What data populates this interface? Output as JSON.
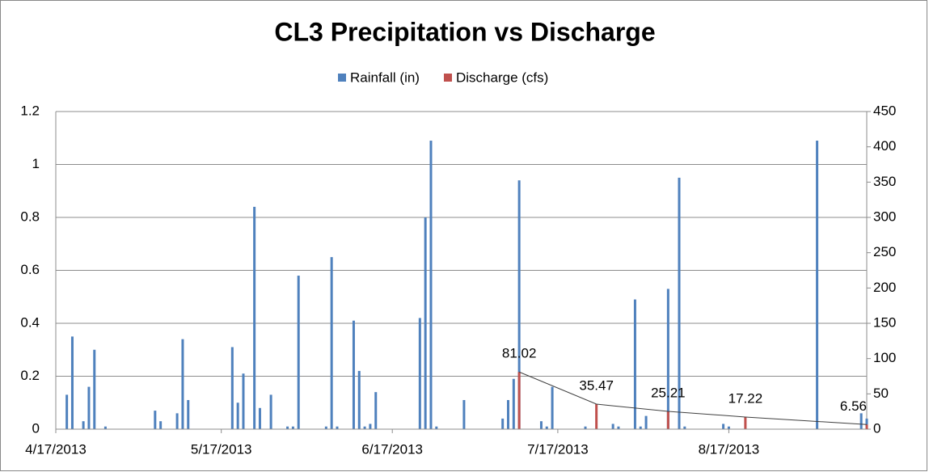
{
  "chart_data": {
    "type": "bar",
    "title": "CL3 Precipitation vs Discharge",
    "legend": "top",
    "grid": true,
    "xlim": [
      "4/17/2013",
      "9/11/2013"
    ],
    "xticks": [
      "4/17/2013",
      "5/17/2013",
      "6/17/2013",
      "7/17/2013",
      "8/17/2013"
    ],
    "ylim": [
      0,
      1.2
    ],
    "yticks": [
      0,
      0.2,
      0.4,
      0.6,
      0.8,
      1,
      1.2
    ],
    "y2lim": [
      0,
      450
    ],
    "y2ticks": [
      0,
      50,
      100,
      150,
      200,
      250,
      300,
      350,
      400,
      450
    ],
    "series": [
      {
        "name": "Rainfall (in)",
        "color": "#4f81bd",
        "x": [
          "4/19/2013",
          "4/20/2013",
          "4/22/2013",
          "4/23/2013",
          "4/24/2013",
          "4/26/2013",
          "5/5/2013",
          "5/6/2013",
          "5/9/2013",
          "5/10/2013",
          "5/11/2013",
          "5/19/2013",
          "5/20/2013",
          "5/21/2013",
          "5/23/2013",
          "5/24/2013",
          "5/26/2013",
          "5/29/2013",
          "5/30/2013",
          "5/31/2013",
          "6/5/2013",
          "6/6/2013",
          "6/7/2013",
          "6/10/2013",
          "6/11/2013",
          "6/12/2013",
          "6/13/2013",
          "6/14/2013",
          "6/22/2013",
          "6/23/2013",
          "6/24/2013",
          "6/25/2013",
          "6/30/2013",
          "7/7/2013",
          "7/8/2013",
          "7/9/2013",
          "7/10/2013",
          "7/14/2013",
          "7/15/2013",
          "7/16/2013",
          "7/22/2013",
          "7/27/2013",
          "7/28/2013",
          "7/31/2013",
          "8/1/2013",
          "8/2/2013",
          "8/6/2013",
          "8/8/2013",
          "8/9/2013",
          "8/16/2013",
          "8/17/2013",
          "9/2/2013",
          "9/10/2013",
          "9/11/2013"
        ],
        "values": [
          0.13,
          0.35,
          0.03,
          0.16,
          0.3,
          0.01,
          0.07,
          0.03,
          0.06,
          0.34,
          0.11,
          0.31,
          0.1,
          0.21,
          0.84,
          0.08,
          0.13,
          0.01,
          0.01,
          0.58,
          0.01,
          0.65,
          0.01,
          0.41,
          0.22,
          0.01,
          0.02,
          0.14,
          0.42,
          0.8,
          1.09,
          0.01,
          0.11,
          0.04,
          0.11,
          0.19,
          0.94,
          0.03,
          0.01,
          0.16,
          0.01,
          0.02,
          0.01,
          0.49,
          0.01,
          0.05,
          0.53,
          0.95,
          0.01,
          0.02,
          0.01,
          1.09,
          0.06,
          0.04
        ]
      },
      {
        "name": "Discharge (cfs)",
        "color": "#c0504d",
        "axis": "y2",
        "line_color": "#404040",
        "x": [
          "7/10/2013",
          "7/24/2013",
          "8/6/2013",
          "8/20/2013",
          "9/11/2013"
        ],
        "values": [
          81.02,
          35.47,
          25.21,
          17.22,
          6.56
        ]
      }
    ]
  }
}
